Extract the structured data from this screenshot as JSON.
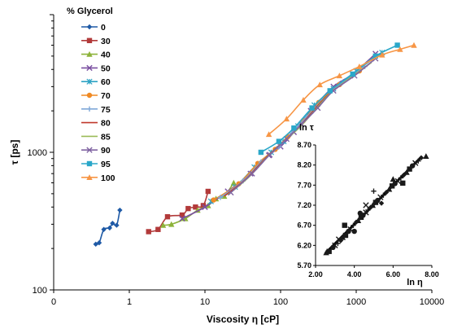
{
  "chart_data": [
    {
      "type": "line",
      "xlabel": "Viscosity η [cP]",
      "ylabel": "τ [ps]",
      "x_scale": "log",
      "y_scale": "log",
      "xlim": [
        0.1,
        10000
      ],
      "ylim": [
        100,
        10000
      ],
      "x_ticks": [
        "0",
        "1",
        "10",
        "100",
        "1000",
        "10000"
      ],
      "y_ticks": [
        "100",
        "1000"
      ],
      "grid": false,
      "legend": {
        "title": "% Glycerol",
        "placement": "top-left"
      },
      "series": [
        {
          "name": "0",
          "color": "#1F5AA6",
          "marker": "diamond",
          "points": [
            [
              0.36,
              215
            ],
            [
              0.4,
              220
            ],
            [
              0.46,
              275
            ],
            [
              0.55,
              282
            ],
            [
              0.6,
              305
            ],
            [
              0.68,
              295
            ],
            [
              0.75,
              380
            ]
          ]
        },
        {
          "name": "30",
          "color": "#B23A3A",
          "marker": "square",
          "points": [
            [
              1.8,
              265
            ],
            [
              2.4,
              275
            ],
            [
              3.2,
              340
            ],
            [
              5.0,
              350
            ],
            [
              6.0,
              390
            ],
            [
              7.5,
              400
            ],
            [
              9.5,
              410
            ],
            [
              11,
              520
            ]
          ]
        },
        {
          "name": "40",
          "color": "#8DB33A",
          "marker": "triangle",
          "points": [
            [
              2.8,
              295
            ],
            [
              3.6,
              300
            ],
            [
              5.5,
              330
            ],
            [
              8.0,
              380
            ],
            [
              11,
              410
            ],
            [
              14,
              460
            ],
            [
              18,
              480
            ],
            [
              24,
              600
            ]
          ]
        },
        {
          "name": "50",
          "color": "#7A4FA0",
          "marker": "x",
          "points": [
            [
              5,
              330
            ],
            [
              10,
              400
            ],
            [
              20,
              520
            ],
            [
              40,
              700
            ],
            [
              70,
              950
            ],
            [
              100,
              1100
            ],
            [
              150,
              1400
            ],
            [
              250,
              2000
            ],
            [
              500,
              3000
            ],
            [
              900,
              3700
            ],
            [
              1800,
              5200
            ]
          ]
        },
        {
          "name": "60",
          "color": "#2EA3C4",
          "marker": "star",
          "points": [
            [
              12,
              440
            ],
            [
              25,
              560
            ],
            [
              45,
              780
            ],
            [
              75,
              1000
            ],
            [
              110,
              1200
            ],
            [
              170,
              1550
            ],
            [
              280,
              2200
            ],
            [
              500,
              2900
            ],
            [
              1000,
              3900
            ],
            [
              2200,
              5300
            ]
          ]
        },
        {
          "name": "70",
          "color": "#F08A24",
          "marker": "circle",
          "points": [
            [
              13,
              450
            ],
            [
              28,
              590
            ],
            [
              50,
              830
            ],
            [
              85,
              1050
            ],
            [
              125,
              1300
            ],
            [
              200,
              1700
            ],
            [
              320,
              2300
            ],
            [
              600,
              3100
            ],
            [
              1100,
              3900
            ]
          ]
        },
        {
          "name": "75",
          "color": "#7FA8D8",
          "marker": "plus",
          "points": [
            [
              16,
              470
            ],
            [
              32,
              620
            ],
            [
              55,
              850
            ],
            [
              95,
              1100
            ],
            [
              140,
              1380
            ],
            [
              220,
              1800
            ],
            [
              360,
              2400
            ],
            [
              650,
              3200
            ],
            [
              1300,
              4200
            ]
          ]
        },
        {
          "name": "80",
          "color": "#C0392B",
          "marker": "none",
          "points": [
            [
              18,
              480
            ],
            [
              35,
              640
            ],
            [
              60,
              880
            ],
            [
              100,
              1150
            ],
            [
              160,
              1450
            ],
            [
              250,
              1900
            ],
            [
              420,
              2600
            ],
            [
              800,
              3400
            ],
            [
              1500,
              4400
            ]
          ]
        },
        {
          "name": "85",
          "color": "#9BBB59",
          "marker": "none",
          "points": [
            [
              20,
              490
            ],
            [
              38,
              660
            ],
            [
              65,
              910
            ],
            [
              110,
              1200
            ],
            [
              175,
              1500
            ],
            [
              280,
              2000
            ],
            [
              460,
              2700
            ],
            [
              850,
              3500
            ],
            [
              1600,
              4500
            ]
          ]
        },
        {
          "name": "90",
          "color": "#8064A2",
          "marker": "x",
          "points": [
            [
              22,
              510
            ],
            [
              42,
              700
            ],
            [
              72,
              960
            ],
            [
              120,
              1250
            ],
            [
              190,
              1600
            ],
            [
              310,
              2100
            ],
            [
              500,
              2800
            ],
            [
              950,
              3600
            ],
            [
              1800,
              4800
            ]
          ]
        },
        {
          "name": "95",
          "color": "#2AA7C9",
          "marker": "square",
          "points": [
            [
              55,
              1000
            ],
            [
              95,
              1200
            ],
            [
              150,
              1500
            ],
            [
              260,
              2100
            ],
            [
              450,
              2800
            ],
            [
              900,
              3700
            ],
            [
              1800,
              5000
            ],
            [
              3500,
              6000
            ]
          ]
        },
        {
          "name": "100",
          "color": "#F79646",
          "marker": "triangle",
          "points": [
            [
              70,
              1350
            ],
            [
              120,
              1750
            ],
            [
              200,
              2400
            ],
            [
              330,
              3100
            ],
            [
              600,
              3600
            ],
            [
              1100,
              4200
            ],
            [
              2200,
              5100
            ],
            [
              3800,
              5600
            ],
            [
              5800,
              6000
            ]
          ]
        }
      ]
    },
    {
      "type": "scatter",
      "title": "",
      "xlabel": "ln η",
      "ylabel": "ln τ",
      "xlim": [
        2.0,
        8.0
      ],
      "ylim": [
        5.7,
        8.7
      ],
      "x_ticks": [
        "2.00",
        "4.00",
        "6.00",
        "8.00"
      ],
      "y_ticks": [
        "5.70",
        "6.20",
        "6.70",
        "7.20",
        "7.70",
        "8.20",
        "8.70"
      ],
      "fit_line": [
        [
          2.5,
          6.0
        ],
        [
          7.5,
          8.42
        ]
      ],
      "points": [
        [
          2.55,
          6.02
        ],
        [
          2.7,
          6.05
        ],
        [
          2.9,
          6.15
        ],
        [
          3.0,
          6.2
        ],
        [
          3.15,
          6.25
        ],
        [
          3.3,
          6.32
        ],
        [
          3.4,
          6.4
        ],
        [
          3.55,
          6.45
        ],
        [
          3.7,
          6.55
        ],
        [
          3.8,
          6.6
        ],
        [
          3.95,
          6.7
        ],
        [
          4.1,
          6.78
        ],
        [
          4.2,
          6.82
        ],
        [
          4.35,
          6.9
        ],
        [
          4.45,
          6.95
        ],
        [
          4.6,
          7.02
        ],
        [
          4.7,
          7.08
        ],
        [
          4.85,
          7.15
        ],
        [
          4.95,
          7.2
        ],
        [
          5.1,
          7.27
        ],
        [
          5.2,
          7.32
        ],
        [
          5.35,
          7.4
        ],
        [
          5.5,
          7.45
        ],
        [
          5.65,
          7.52
        ],
        [
          5.8,
          7.6
        ],
        [
          5.95,
          7.68
        ],
        [
          6.1,
          7.74
        ],
        [
          6.25,
          7.8
        ],
        [
          6.4,
          7.88
        ],
        [
          6.55,
          7.95
        ],
        [
          6.7,
          8.02
        ],
        [
          6.85,
          8.1
        ],
        [
          7.0,
          8.18
        ],
        [
          7.15,
          8.25
        ],
        [
          7.3,
          8.3
        ],
        [
          7.45,
          8.38
        ],
        [
          7.7,
          8.42
        ],
        [
          3.5,
          6.7
        ],
        [
          4.0,
          6.55
        ],
        [
          4.6,
          7.2
        ],
        [
          5.0,
          7.55
        ],
        [
          5.4,
          7.25
        ],
        [
          6.0,
          7.85
        ],
        [
          6.5,
          7.75
        ],
        [
          4.3,
          7.0
        ],
        [
          3.2,
          6.35
        ]
      ]
    }
  ]
}
